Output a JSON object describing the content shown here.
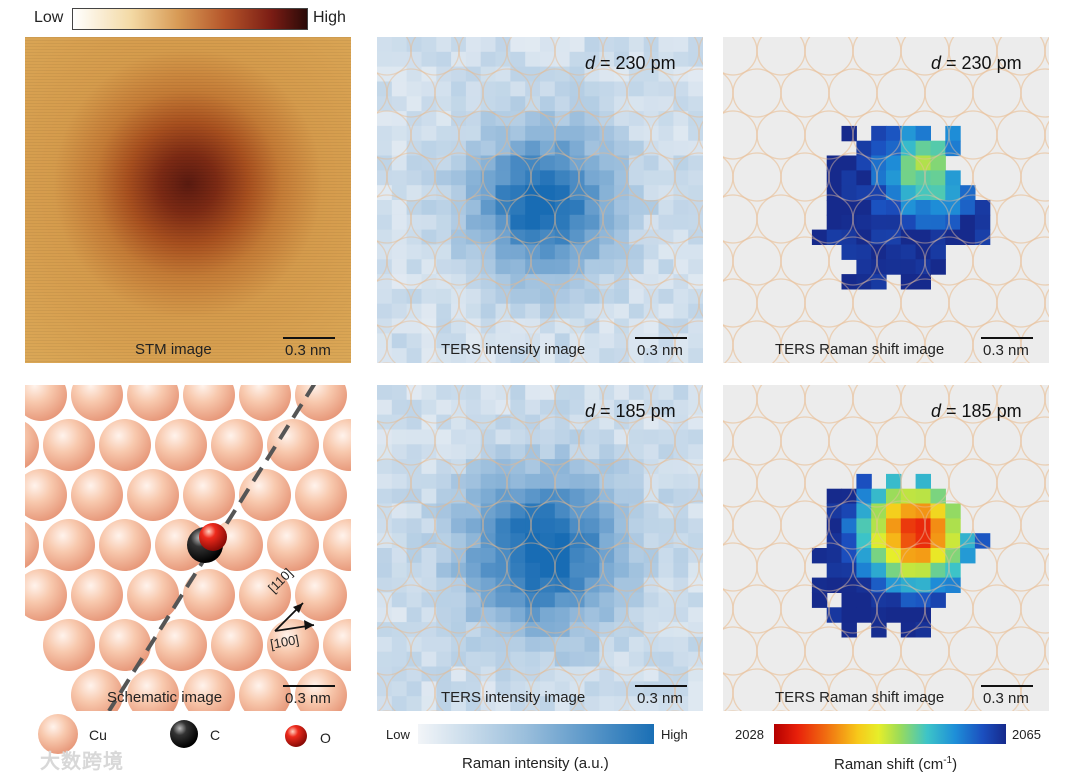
{
  "top_colorbar": {
    "low": "Low",
    "high": "High"
  },
  "panels": {
    "stm": {
      "caption": "STM  image",
      "scale": "0.3 nm"
    },
    "ters_int_top": {
      "caption": "TERS intensity image",
      "scale": "0.3 nm",
      "d_var": "d",
      "d_val": " = 230 pm"
    },
    "ters_shift_top": {
      "caption": "TERS Raman shift image",
      "scale": "0.3 nm",
      "d_var": "d",
      "d_val": " = 230 pm"
    },
    "schematic": {
      "caption": "Schematic image",
      "scale": "0.3 nm",
      "dir1": "[110]",
      "dir2": "[100]"
    },
    "ters_int_bot": {
      "caption": "TERS intensity image",
      "scale": "0.3 nm",
      "d_var": "d",
      "d_val": " = 185 pm"
    },
    "ters_shift_bot": {
      "caption": "TERS Raman shift image",
      "scale": "0.3 nm",
      "d_var": "d",
      "d_val": " = 185 pm"
    }
  },
  "legend": {
    "cu": "Cu",
    "c": "C",
    "o": "O"
  },
  "intensity_bar": {
    "low": "Low",
    "high": "High",
    "title": "Raman intensity (a.u.)"
  },
  "shift_bar": {
    "min": "2028",
    "max": "2065",
    "title_pre": "Raman shift (cm",
    "title_sup": "-1",
    "title_post": ")"
  },
  "watermark": "大数跨境",
  "colors": {
    "stm_dark": "#5a1a10",
    "stm_light": "#d9a054",
    "cu": "#f4b89c",
    "o": "#e0201c",
    "int_blue": "#1a6fb5"
  }
}
